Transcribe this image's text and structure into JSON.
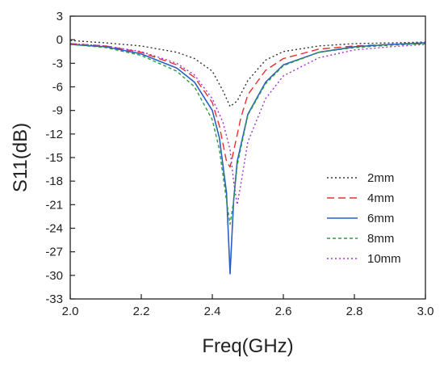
{
  "chart_data": {
    "type": "line",
    "xlabel": "Freq(GHz)",
    "ylabel": "S11(dB)",
    "xlim": [
      2.0,
      3.0
    ],
    "ylim": [
      -33,
      3
    ],
    "xticks": [
      2.0,
      2.2,
      2.4,
      2.6,
      2.8,
      3.0
    ],
    "xtick_labels": [
      "2.0",
      "2.2",
      "2.4",
      "2.6",
      "2.8",
      "3.0"
    ],
    "yticks": [
      3,
      0,
      -3,
      -6,
      -9,
      -12,
      -15,
      -18,
      -21,
      -24,
      -27,
      -30,
      -33
    ],
    "ytick_labels": [
      "3",
      "0",
      "-3",
      "-6",
      "-9",
      "-12",
      "-15",
      "-18",
      "-21",
      "-24",
      "-27",
      "-30",
      "-33"
    ],
    "grid": false,
    "legend_position": "right-middle",
    "series": [
      {
        "name": "2mm",
        "color": "#333333",
        "dash": "dot",
        "points": [
          [
            2.0,
            -0.1
          ],
          [
            2.1,
            -0.4
          ],
          [
            2.2,
            -0.8
          ],
          [
            2.3,
            -1.6
          ],
          [
            2.35,
            -2.4
          ],
          [
            2.4,
            -4.0
          ],
          [
            2.43,
            -6.5
          ],
          [
            2.45,
            -8.5
          ],
          [
            2.47,
            -7.8
          ],
          [
            2.5,
            -5.2
          ],
          [
            2.55,
            -2.6
          ],
          [
            2.6,
            -1.5
          ],
          [
            2.7,
            -0.8
          ],
          [
            2.8,
            -0.5
          ],
          [
            2.9,
            -0.4
          ],
          [
            3.0,
            -0.3
          ]
        ]
      },
      {
        "name": "4mm",
        "color": "#e83030",
        "dash": "dash",
        "points": [
          [
            2.0,
            -0.5
          ],
          [
            2.1,
            -0.8
          ],
          [
            2.2,
            -1.6
          ],
          [
            2.3,
            -3.2
          ],
          [
            2.35,
            -4.8
          ],
          [
            2.4,
            -8.0
          ],
          [
            2.42,
            -11.0
          ],
          [
            2.44,
            -15.5
          ],
          [
            2.45,
            -16.2
          ],
          [
            2.46,
            -14.2
          ],
          [
            2.48,
            -10.0
          ],
          [
            2.5,
            -7.0
          ],
          [
            2.55,
            -3.9
          ],
          [
            2.6,
            -2.4
          ],
          [
            2.7,
            -1.2
          ],
          [
            2.8,
            -0.8
          ],
          [
            2.9,
            -0.6
          ],
          [
            3.0,
            -0.5
          ]
        ]
      },
      {
        "name": "6mm",
        "color": "#2a5fc4",
        "dash": "solid",
        "points": [
          [
            2.0,
            -0.6
          ],
          [
            2.1,
            -0.9
          ],
          [
            2.2,
            -1.8
          ],
          [
            2.3,
            -3.6
          ],
          [
            2.35,
            -5.4
          ],
          [
            2.4,
            -9.0
          ],
          [
            2.42,
            -12.5
          ],
          [
            2.44,
            -19.5
          ],
          [
            2.45,
            -29.8
          ],
          [
            2.46,
            -20.5
          ],
          [
            2.47,
            -15.5
          ],
          [
            2.5,
            -9.5
          ],
          [
            2.55,
            -5.4
          ],
          [
            2.6,
            -3.2
          ],
          [
            2.7,
            -1.6
          ],
          [
            2.8,
            -0.9
          ],
          [
            2.9,
            -0.6
          ],
          [
            3.0,
            -0.4
          ]
        ]
      },
      {
        "name": "8mm",
        "color": "#2a9c3c",
        "dash": "dash-short",
        "points": [
          [
            2.0,
            -0.6
          ],
          [
            2.1,
            -1.0
          ],
          [
            2.2,
            -2.0
          ],
          [
            2.3,
            -4.0
          ],
          [
            2.35,
            -6.0
          ],
          [
            2.4,
            -10.2
          ],
          [
            2.42,
            -14.0
          ],
          [
            2.44,
            -20.5
          ],
          [
            2.45,
            -23.5
          ],
          [
            2.46,
            -20.5
          ],
          [
            2.47,
            -16.0
          ],
          [
            2.5,
            -9.6
          ],
          [
            2.55,
            -5.6
          ],
          [
            2.6,
            -3.3
          ],
          [
            2.7,
            -1.6
          ],
          [
            2.8,
            -1.0
          ],
          [
            2.9,
            -0.7
          ],
          [
            3.0,
            -0.5
          ]
        ]
      },
      {
        "name": "10mm",
        "color": "#a030d0",
        "dash": "dot",
        "points": [
          [
            2.0,
            -0.5
          ],
          [
            2.1,
            -0.8
          ],
          [
            2.2,
            -1.5
          ],
          [
            2.3,
            -3.0
          ],
          [
            2.35,
            -4.5
          ],
          [
            2.4,
            -7.5
          ],
          [
            2.43,
            -10.5
          ],
          [
            2.45,
            -14.0
          ],
          [
            2.46,
            -18.0
          ],
          [
            2.47,
            -21.0
          ],
          [
            2.48,
            -18.5
          ],
          [
            2.5,
            -13.0
          ],
          [
            2.55,
            -7.5
          ],
          [
            2.6,
            -4.6
          ],
          [
            2.7,
            -2.3
          ],
          [
            2.8,
            -1.3
          ],
          [
            2.9,
            -0.9
          ],
          [
            3.0,
            -0.6
          ]
        ]
      }
    ]
  }
}
